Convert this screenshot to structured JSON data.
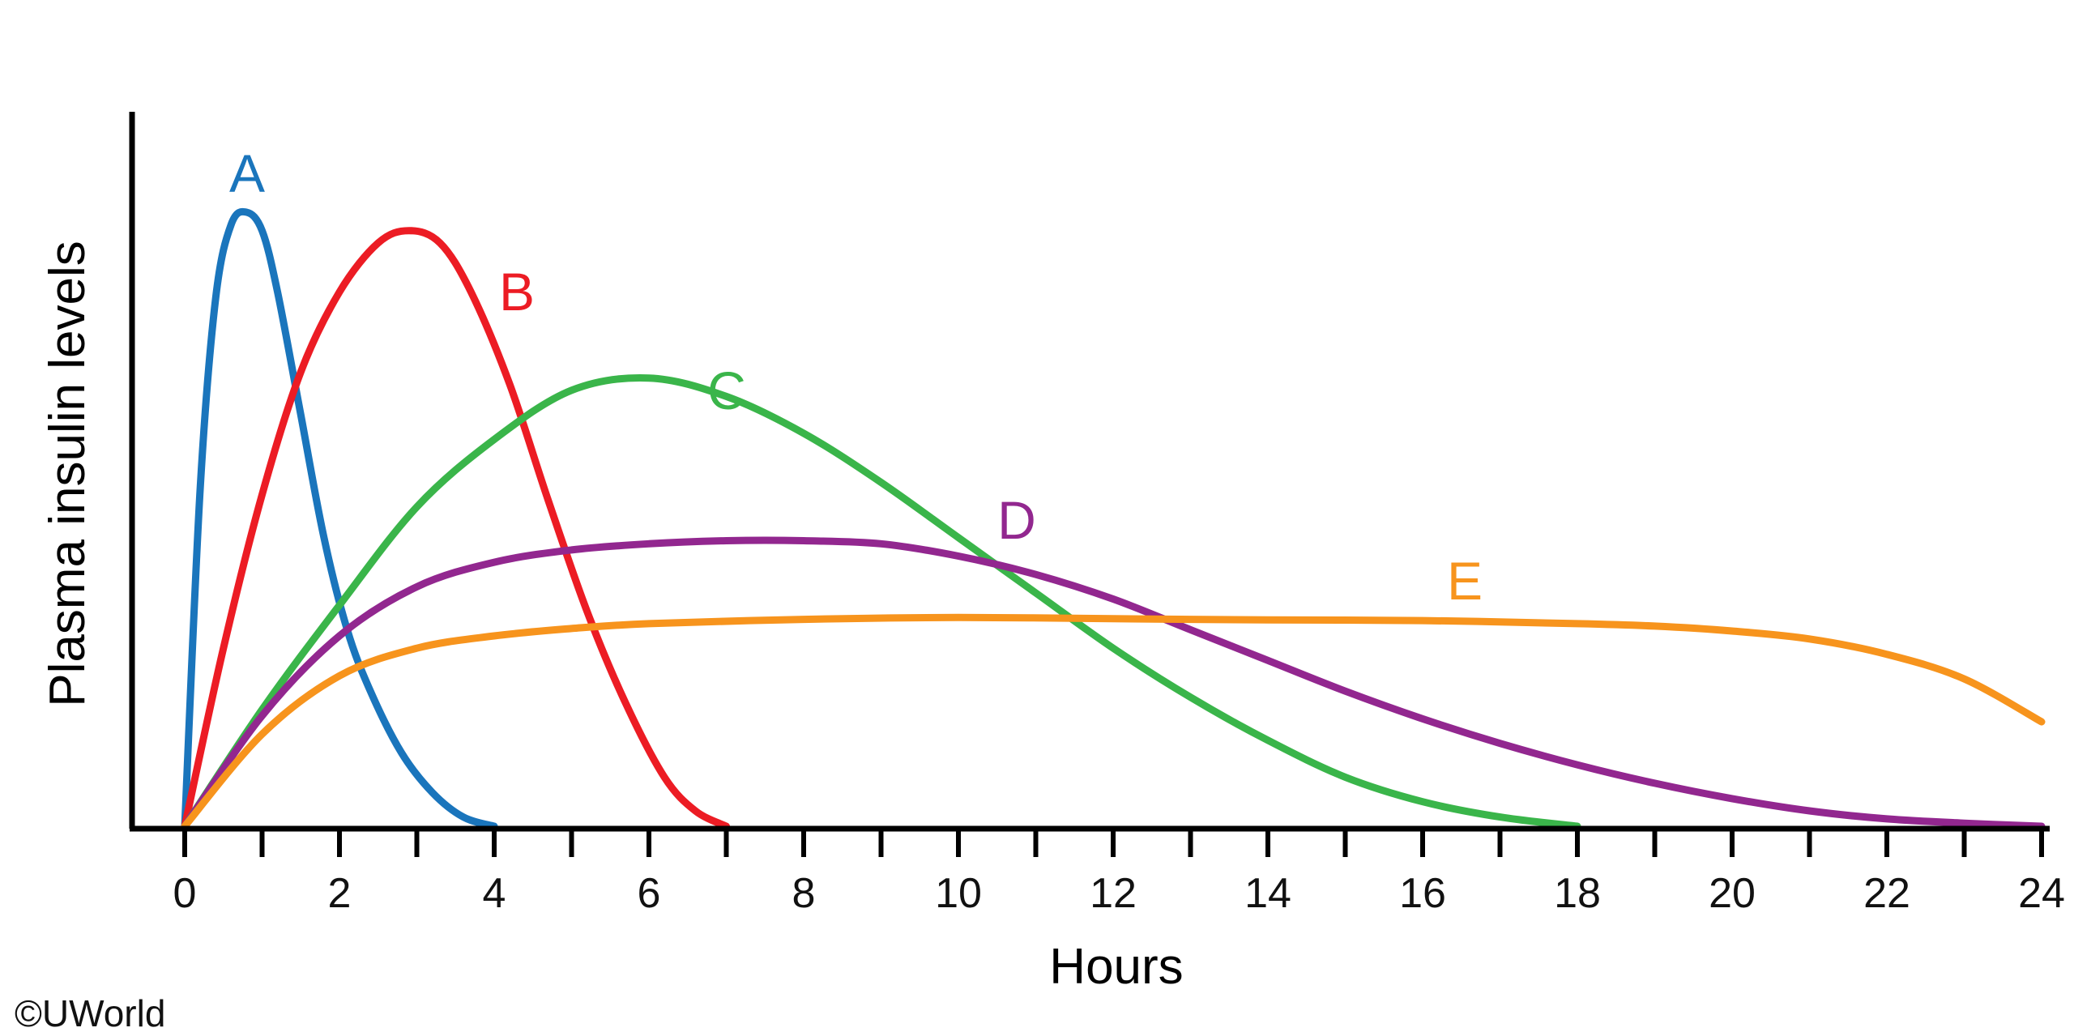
{
  "chart_data": {
    "type": "line",
    "xlabel": "Hours",
    "ylabel": "Plasma insulin levels",
    "xlim": [
      0,
      24
    ],
    "ylim": [
      0,
      1
    ],
    "x_ticks": [
      0,
      2,
      4,
      6,
      8,
      10,
      12,
      14,
      16,
      18,
      20,
      22,
      24
    ],
    "x_minor_ticks": [
      1,
      3,
      5,
      7,
      9,
      11,
      13,
      15,
      17,
      19,
      21,
      23
    ],
    "y_ticks": [],
    "grid": false,
    "legend": "none (curves labeled directly)",
    "series": [
      {
        "name": "A",
        "color": "#1a75bc",
        "x": [
          0,
          0.2,
          0.4,
          0.6,
          0.8,
          1.0,
          1.2,
          1.5,
          1.8,
          2.1,
          2.4,
          2.8,
          3.2,
          3.6,
          4.0
        ],
        "y": [
          0,
          0.55,
          0.86,
          0.98,
          1.0,
          0.97,
          0.87,
          0.67,
          0.47,
          0.32,
          0.22,
          0.12,
          0.055,
          0.015,
          0
        ]
      },
      {
        "name": "B",
        "color": "#ec1c24",
        "x": [
          0,
          0.5,
          1.0,
          1.5,
          2.0,
          2.5,
          2.9,
          3.3,
          3.7,
          4.2,
          4.7,
          5.2,
          5.7,
          6.2,
          6.6,
          7.0
        ],
        "y": [
          0,
          0.29,
          0.54,
          0.74,
          0.87,
          0.95,
          0.97,
          0.95,
          0.87,
          0.72,
          0.53,
          0.35,
          0.2,
          0.08,
          0.025,
          0
        ]
      },
      {
        "name": "C",
        "color": "#3ab54a",
        "x": [
          0,
          1,
          2,
          3,
          4,
          5,
          6,
          7,
          8,
          9,
          10,
          11,
          12,
          13,
          14,
          15,
          16,
          17,
          18
        ],
        "y": [
          0,
          0.19,
          0.36,
          0.52,
          0.63,
          0.71,
          0.73,
          0.7,
          0.64,
          0.56,
          0.47,
          0.38,
          0.29,
          0.21,
          0.14,
          0.08,
          0.04,
          0.015,
          0
        ]
      },
      {
        "name": "D",
        "color": "#92278f",
        "x": [
          0,
          1,
          2,
          3,
          4,
          5,
          6,
          7,
          8,
          9,
          10,
          11,
          12,
          13,
          14,
          15,
          16,
          17,
          18,
          19,
          20,
          21,
          22,
          23,
          24
        ],
        "y": [
          0,
          0.18,
          0.31,
          0.39,
          0.43,
          0.45,
          0.46,
          0.465,
          0.465,
          0.46,
          0.44,
          0.41,
          0.37,
          0.32,
          0.27,
          0.22,
          0.175,
          0.135,
          0.1,
          0.07,
          0.045,
          0.025,
          0.012,
          0.005,
          0
        ]
      },
      {
        "name": "E",
        "color": "#f7941d",
        "x": [
          0,
          1,
          2,
          3,
          4,
          5,
          6,
          8,
          10,
          12,
          14,
          16,
          18,
          19,
          20,
          21,
          22,
          23,
          24
        ],
        "y": [
          0,
          0.15,
          0.245,
          0.29,
          0.31,
          0.322,
          0.33,
          0.337,
          0.34,
          0.338,
          0.336,
          0.335,
          0.33,
          0.326,
          0.318,
          0.305,
          0.28,
          0.24,
          0.17
        ]
      }
    ]
  },
  "copyright": "©UWorld"
}
